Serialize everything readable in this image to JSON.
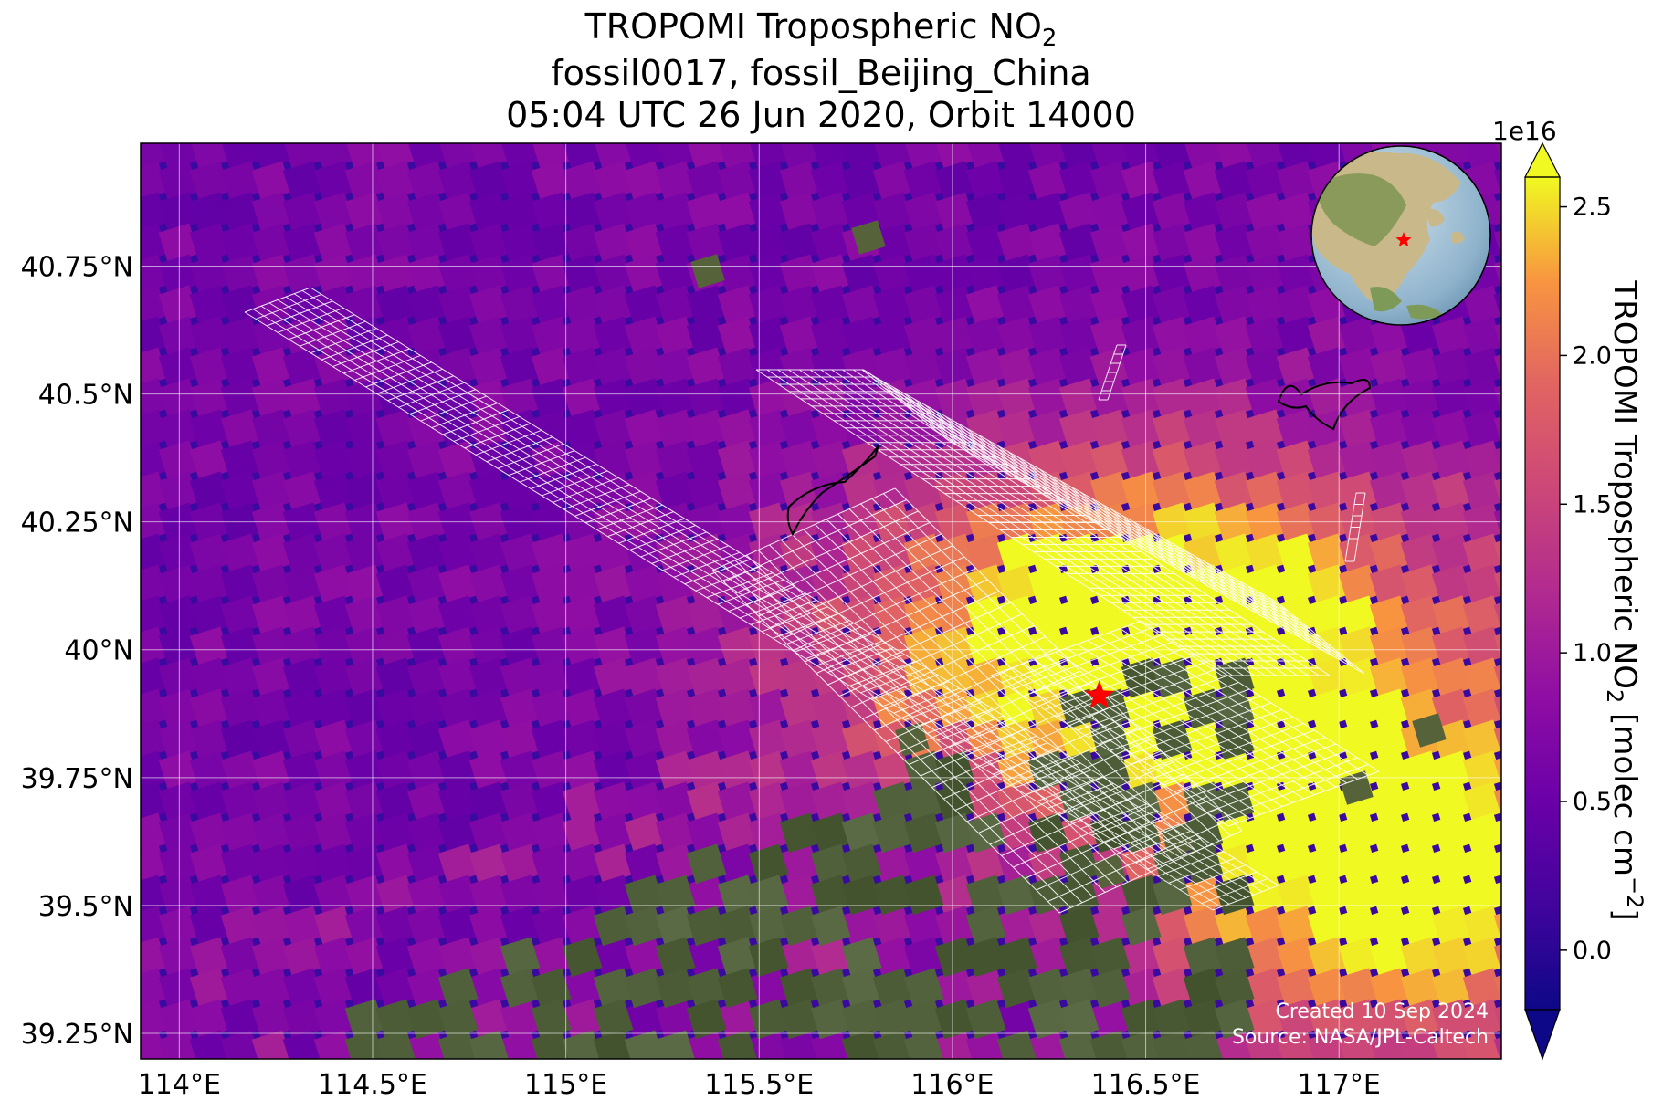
{
  "title": {
    "line1_main": "TROPOMI Tropospheric NO",
    "line1_sub": "2",
    "line2": "fossil0017, fossil_Beijing_China",
    "line3": "05:04 UTC 26 Jun 2020, Orbit 14000"
  },
  "map": {
    "lon_range": [
      113.9,
      117.42
    ],
    "lat_range": [
      39.2,
      40.99
    ],
    "lon_ticks": [
      114.0,
      114.5,
      115.0,
      115.5,
      116.0,
      116.5,
      117.0
    ],
    "lon_tick_labels": [
      "114°E",
      "114.5°E",
      "115°E",
      "115.5°E",
      "116°E",
      "116.5°E",
      "117°E"
    ],
    "lat_ticks": [
      39.25,
      39.5,
      39.75,
      40.0,
      40.25,
      40.5,
      40.75
    ],
    "lat_tick_labels": [
      "39.25°N",
      "39.5°N",
      "39.75°N",
      "40°N",
      "40.25°N",
      "40.5°N",
      "40.75°N"
    ],
    "gridlines": true,
    "target_marker": {
      "lon": 116.38,
      "lat": 39.91,
      "symbol": "star",
      "color": "#ff0000"
    },
    "credit": {
      "line1": "Created 10 Sep 2024",
      "line2": "Source: NASA/JPL-Caltech"
    },
    "inset_globe": {
      "position": "top-right",
      "marker_color": "#ff0000"
    }
  },
  "colorbar": {
    "exponent": "1e16",
    "ticks": [
      0.0,
      0.5,
      1.0,
      1.5,
      2.0,
      2.5
    ],
    "tick_labels": [
      "0.0",
      "0.5",
      "1.0",
      "1.5",
      "2.0",
      "2.5"
    ],
    "label_main": "TROPOMI Tropospheric NO",
    "label_sub": "2",
    "label_units": " [molec cm",
    "label_sup": "−2",
    "label_end": "]",
    "vmin": -0.2,
    "vmax": 2.6,
    "colormap": "plasma",
    "extend": "both"
  },
  "colors": {
    "background_low": "#3a0aa0",
    "terrain": "#4f5a35",
    "star": "#ff0000",
    "grid": "#ffffff"
  }
}
